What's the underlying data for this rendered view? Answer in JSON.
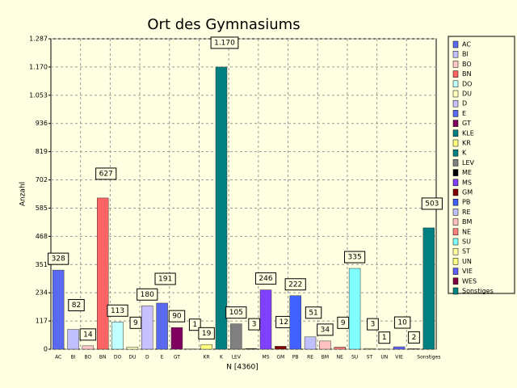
{
  "chart_data": {
    "type": "bar",
    "title": "Ort des Gymnasiums",
    "ylabel": "Anzahl",
    "xlabel": "N [4360]",
    "categories": [
      "AC",
      "BI",
      "BO",
      "BN",
      "DO",
      "DU",
      "D",
      "E",
      "GT",
      null,
      "KR",
      "K",
      "LEV",
      null,
      "MS",
      "GM",
      "PB",
      "RE",
      "BM",
      "NE",
      "SU",
      "ST",
      "UN",
      "VIE",
      null,
      "Sonstiges"
    ],
    "values": [
      328,
      82,
      14,
      627,
      113,
      9,
      180,
      191,
      90,
      1,
      19,
      1170,
      105,
      3,
      246,
      12,
      222,
      51,
      34,
      9,
      335,
      3,
      1,
      10,
      2,
      503
    ],
    "value_labels": [
      "328",
      "82",
      "14",
      "627",
      "113",
      "9",
      "180",
      "191",
      "90",
      "1",
      "19",
      "1.170",
      "105",
      "3",
      "246",
      "12",
      "222",
      "51",
      "34",
      "9",
      "335",
      "3",
      "1",
      "10",
      "2",
      "503"
    ],
    "colors": [
      "#5a6af0",
      "#c0c0ff",
      "#ffc8c8",
      "#ff6464",
      "#c0ffff",
      "#ffffc0",
      "#c8c0ff",
      "#5a6af0",
      "#800060",
      "#008080",
      "#ffff80",
      "#008080",
      "#808080",
      "#000000",
      "#8040ff",
      "#800000",
      "#4060ff",
      "#c0c0ff",
      "#ffc0c0",
      "#ff8080",
      "#80ffff",
      "#ffffa0",
      "#ffff80",
      "#6060ff",
      "#800040",
      "#008080"
    ],
    "legend": [
      "AC",
      "BI",
      "BO",
      "BN",
      "DO",
      "DU",
      "D",
      "E",
      "GT",
      "KLE",
      "KR",
      "K",
      "LEV",
      "ME",
      "MS",
      "GM",
      "PB",
      "RE",
      "BM",
      "NE",
      "SU",
      "ST",
      "UN",
      "VIE",
      "WES",
      "Sonstiges"
    ],
    "ylim": [
      0,
      1287
    ],
    "yticks": [
      0,
      117,
      234,
      351,
      468,
      585,
      702,
      819,
      936,
      {
        "value": 1053,
        "label": "1.053"
      },
      {
        "value": 1170,
        "label": "1.170"
      },
      {
        "value": 1287,
        "label": "1.287"
      }
    ],
    "grid": true
  }
}
